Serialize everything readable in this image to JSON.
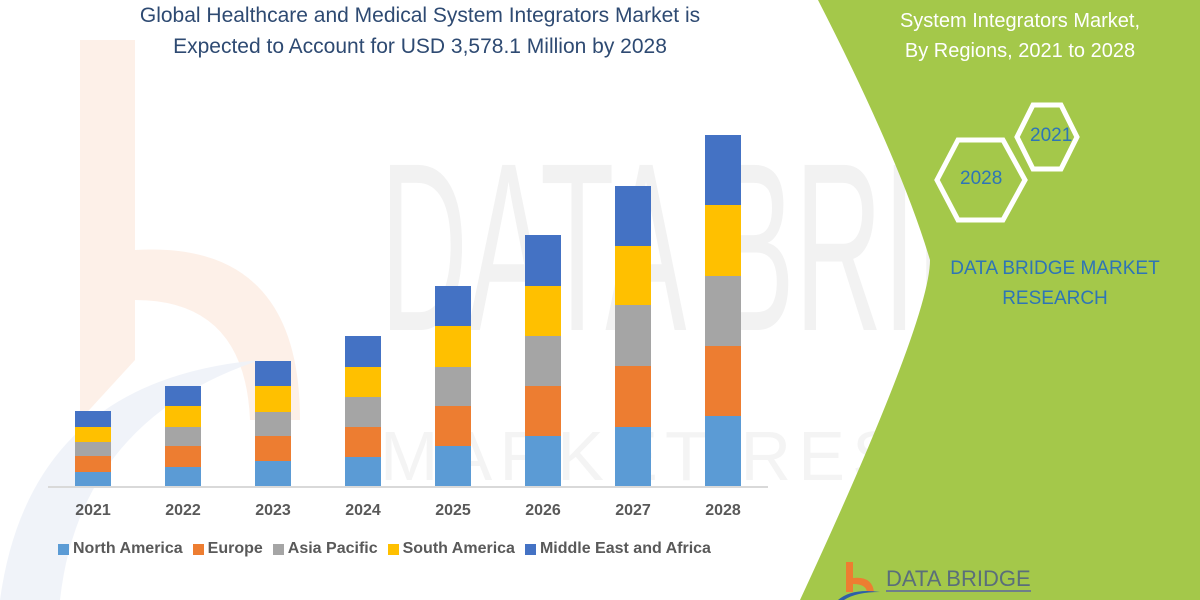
{
  "title": {
    "line1": "Global Healthcare and Medical System Integrators Market is",
    "line2": "Expected to Account for USD 3,578.1 Million by 2028"
  },
  "side_panel": {
    "title_line1": "System Integrators Market,",
    "title_line2": "By Regions, 2021 to 2028",
    "hex_front": "2028",
    "hex_back": "2021",
    "brand_line1": "DATA BRIDGE MARKET",
    "brand_line2": "RESEARCH",
    "panel_color": "#A4C84A"
  },
  "logo": {
    "text": "DATA BRIDGE",
    "mark_color": "#ED7D31",
    "swoosh_color": "#2E5FA8"
  },
  "legend": [
    {
      "label": "North America",
      "color": "#5B9BD5"
    },
    {
      "label": "Europe",
      "color": "#ED7D31"
    },
    {
      "label": "Asia Pacific",
      "color": "#A5A5A5"
    },
    {
      "label": "South America",
      "color": "#FFC000"
    },
    {
      "label": "Middle East and Africa",
      "color": "#4472C4"
    }
  ],
  "chart_data": {
    "type": "bar",
    "stacked": true,
    "title": "Global Healthcare and Medical System Integrators Market is Expected to Account for USD 3,578.1 Million by 2028",
    "subtitle": "System Integrators Market, By Regions, 2021 to 2028",
    "xlabel": "",
    "ylabel": "",
    "units": "USD Million (estimated from bar heights)",
    "categories": [
      "2021",
      "2022",
      "2023",
      "2024",
      "2025",
      "2026",
      "2027",
      "2028"
    ],
    "series": [
      {
        "name": "North America",
        "color": "#5B9BD5",
        "values": [
          143,
          194,
          255,
          296,
          408,
          510,
          601,
          713
        ]
      },
      {
        "name": "Europe",
        "color": "#ED7D31",
        "values": [
          163,
          214,
          255,
          306,
          408,
          510,
          622,
          713
        ]
      },
      {
        "name": "Asia Pacific",
        "color": "#A5A5A5",
        "values": [
          143,
          194,
          245,
          306,
          397,
          510,
          622,
          713
        ]
      },
      {
        "name": "South America",
        "color": "#FFC000",
        "values": [
          153,
          214,
          265,
          306,
          418,
          510,
          601,
          724
        ]
      },
      {
        "name": "Middle East and Africa",
        "color": "#4472C4",
        "values": [
          163,
          204,
          255,
          316,
          408,
          520,
          611,
          715
        ]
      }
    ],
    "totals": [
      765,
      1020,
      1275,
      1530,
      2039,
      2560,
      3057,
      3578.1
    ],
    "grid": false,
    "y_axis_visible": false,
    "legend_position": "bottom",
    "ylim": [
      0,
      3600
    ]
  }
}
